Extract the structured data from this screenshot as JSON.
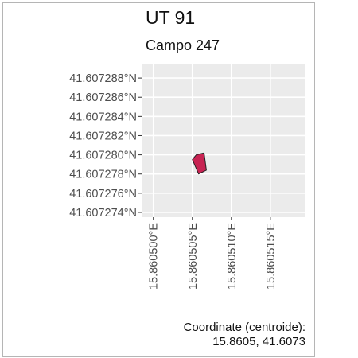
{
  "title": "UT 91",
  "subtitle": "Campo 247",
  "footer": {
    "line1": "Coordinate (centroide):",
    "line2": "15.8605, 41.6073"
  },
  "map": {
    "lat_ticks": [
      {
        "value": 41.607274,
        "label": "41.607274°N"
      },
      {
        "value": 41.607276,
        "label": "41.607276°N"
      },
      {
        "value": 41.607278,
        "label": "41.607278°N"
      },
      {
        "value": 41.60728,
        "label": "41.607280°N"
      },
      {
        "value": 41.607282,
        "label": "41.607282°N"
      },
      {
        "value": 41.607284,
        "label": "41.607284°N"
      },
      {
        "value": 41.607286,
        "label": "41.607286°N"
      },
      {
        "value": 41.607288,
        "label": "41.607288°N"
      }
    ],
    "lon_ticks": [
      {
        "value": 15.8605,
        "label": "15.860500°E"
      },
      {
        "value": 15.860505,
        "label": "15.860505°E"
      },
      {
        "value": 15.86051,
        "label": "15.860510°E"
      },
      {
        "value": 15.860515,
        "label": "15.860515°E"
      }
    ],
    "lon_range": [
      15.8604985,
      15.8605195
    ],
    "lat_range": [
      41.6072735,
      41.6072895
    ],
    "grid": true,
    "panel_color": "#ebebeb",
    "grid_color": "#ffffff",
    "parcel": {
      "fill": "#c72352",
      "stroke": "#222222",
      "vertices": [
        [
          15.8605055,
          41.60728
        ],
        [
          15.8605065,
          41.6072802
        ],
        [
          15.8605068,
          41.6072784
        ],
        [
          15.8605058,
          41.607278
        ],
        [
          15.860505,
          41.6072795
        ]
      ]
    }
  }
}
